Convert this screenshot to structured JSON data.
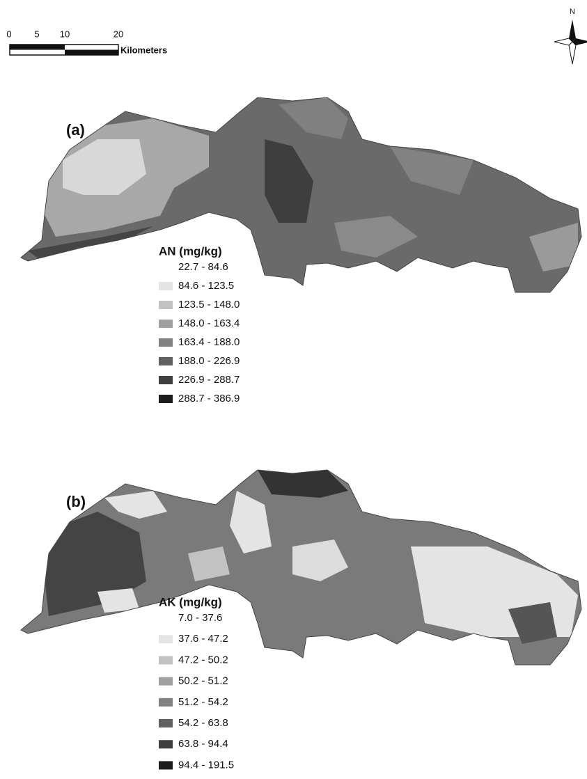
{
  "scale_bar": {
    "ticks": [
      "0",
      "5",
      "10",
      "20"
    ],
    "unit": "Kilometers"
  },
  "north_arrow": "N",
  "panels": [
    {
      "label": "(a)",
      "legend": {
        "title": "AN (mg/kg)",
        "items": [
          {
            "label": "22.7 - 84.6",
            "color": "#ffffff"
          },
          {
            "label": "84.6 - 123.5",
            "color": "#e4e4e4"
          },
          {
            "label": "123.5 - 148.0",
            "color": "#c2c2c2"
          },
          {
            "label": "148.0 - 163.4",
            "color": "#a0a0a0"
          },
          {
            "label": "163.4 - 188.0",
            "color": "#828282"
          },
          {
            "label": "188.0 - 226.9",
            "color": "#606060"
          },
          {
            "label": "226.9 - 288.7",
            "color": "#404040"
          },
          {
            "label": "288.7 - 386.9",
            "color": "#1c1c1c"
          }
        ]
      }
    },
    {
      "label": "(b)",
      "legend": {
        "title": "AK (mg/kg)",
        "items": [
          {
            "label": "7.0 - 37.6",
            "color": "#ffffff"
          },
          {
            "label": "37.6 - 47.2",
            "color": "#e4e4e4"
          },
          {
            "label": "47.2 - 50.2",
            "color": "#c2c2c2"
          },
          {
            "label": "50.2 - 51.2",
            "color": "#a0a0a0"
          },
          {
            "label": "51.2 - 54.2",
            "color": "#828282"
          },
          {
            "label": "54.2 - 63.8",
            "color": "#606060"
          },
          {
            "label": "63.8 - 94.4",
            "color": "#404040"
          },
          {
            "label": "94.4 - 191.5",
            "color": "#1c1c1c"
          }
        ]
      }
    }
  ]
}
